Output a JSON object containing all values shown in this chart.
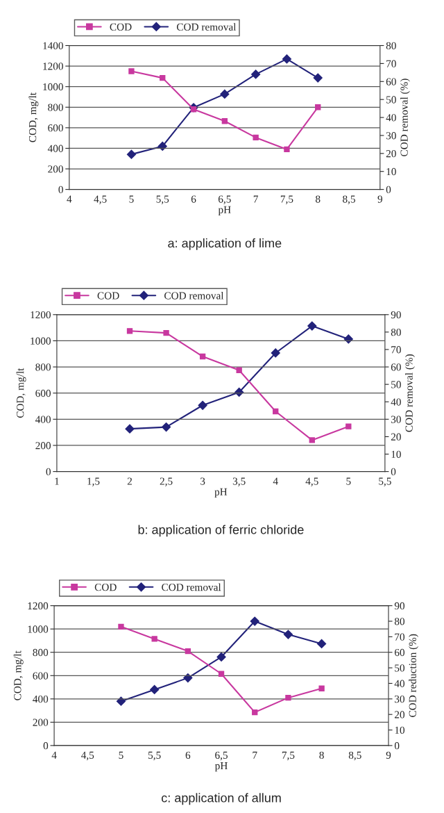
{
  "chart_data": [
    {
      "type": "line",
      "x": [
        5,
        5.5,
        6,
        6.5,
        7,
        7.5,
        8
      ],
      "xlabel": "pH",
      "ylabel": "COD, mg/lt",
      "y2label": "COD removal (%)",
      "series": [
        {
          "name": "COD",
          "color": "#c8389f",
          "marker": "square",
          "values": [
            1150,
            1085,
            780,
            665,
            505,
            390,
            800
          ]
        },
        {
          "name": "COD removal",
          "color": "#22227a",
          "marker": "diamond",
          "axis": "y2",
          "values": [
            19.5,
            24,
            45.5,
            53,
            64,
            72.5,
            62
          ]
        }
      ],
      "xlim": [
        4,
        9
      ],
      "xticks": [
        4,
        {
          "value": 4.5,
          "label": "4,5"
        },
        5,
        {
          "value": 5.5,
          "label": "5,5"
        },
        6,
        {
          "value": 6.5,
          "label": "6,5"
        },
        7,
        {
          "value": 7.5,
          "label": "7,5"
        },
        8,
        {
          "value": 8.5,
          "label": "8,5"
        },
        9
      ],
      "ylim": [
        0,
        1400
      ],
      "yticks": [
        0,
        200,
        400,
        600,
        800,
        1000,
        1200,
        1400
      ],
      "y2lim": [
        0,
        80
      ],
      "y2ticks": [
        0,
        10,
        20,
        30,
        40,
        50,
        60,
        70,
        80
      ],
      "grid": "y",
      "legend": "top",
      "line_style": "solid",
      "annotations": [
        "a: application of lime"
      ]
    },
    {
      "type": "line",
      "x": [
        2,
        2.5,
        3,
        3.5,
        4,
        4.5,
        5
      ],
      "xlabel": "pH",
      "ylabel": "COD, mg/lt",
      "y2label": "COD removal (%)",
      "series": [
        {
          "name": "COD",
          "color": "#c8389f",
          "marker": "square",
          "values": [
            1075,
            1060,
            880,
            775,
            460,
            240,
            345
          ]
        },
        {
          "name": "COD removal",
          "color": "#22227a",
          "marker": "diamond",
          "axis": "y2",
          "values": [
            24.5,
            25.5,
            38,
            45.5,
            68,
            83.5,
            76
          ]
        }
      ],
      "xlim": [
        1,
        5.5
      ],
      "xticks": [
        1,
        {
          "value": 1.5,
          "label": "1,5"
        },
        2,
        {
          "value": 2.5,
          "label": "2,5"
        },
        3,
        {
          "value": 3.5,
          "label": "3,5"
        },
        4,
        {
          "value": 4.5,
          "label": "4,5"
        },
        5,
        {
          "value": 5.5,
          "label": "5,5"
        }
      ],
      "ylim": [
        0,
        1200
      ],
      "yticks": [
        0,
        200,
        400,
        600,
        800,
        1000,
        1200
      ],
      "y2lim": [
        0,
        90
      ],
      "y2ticks": [
        0,
        10,
        20,
        30,
        40,
        50,
        60,
        70,
        80,
        90
      ],
      "grid": "y",
      "legend": "top",
      "line_style": "solid",
      "annotations": [
        "b: application of ferric chloride"
      ]
    },
    {
      "type": "line",
      "x": [
        5,
        5.5,
        6,
        6.5,
        7,
        7.5,
        8
      ],
      "xlabel": "pH",
      "ylabel": "COD, mg/lt",
      "y2label": "COD reduction (%)",
      "series": [
        {
          "name": "COD",
          "color": "#c8389f",
          "marker": "square",
          "values": [
            1020,
            915,
            810,
            615,
            285,
            410,
            490
          ]
        },
        {
          "name": "COD removal",
          "color": "#22227a",
          "marker": "diamond",
          "axis": "y2",
          "values": [
            28.5,
            36,
            43.5,
            57,
            80,
            71.5,
            65.5
          ]
        }
      ],
      "xlim": [
        4,
        9
      ],
      "xticks": [
        4,
        {
          "value": 4.5,
          "label": "4,5"
        },
        5,
        {
          "value": 5.5,
          "label": "5,5"
        },
        6,
        {
          "value": 6.5,
          "label": "6,5"
        },
        7,
        {
          "value": 7.5,
          "label": "7,5"
        },
        8,
        {
          "value": 8.5,
          "label": "8,5"
        },
        9
      ],
      "ylim": [
        0,
        1200
      ],
      "yticks": [
        0,
        200,
        400,
        600,
        800,
        1000,
        1200
      ],
      "y2lim": [
        0,
        90
      ],
      "y2ticks": [
        0,
        10,
        20,
        30,
        40,
        50,
        60,
        70,
        80,
        90
      ],
      "grid": "y",
      "legend": "top",
      "line_style": "solid",
      "annotations": [
        "c: application of allum"
      ]
    }
  ]
}
